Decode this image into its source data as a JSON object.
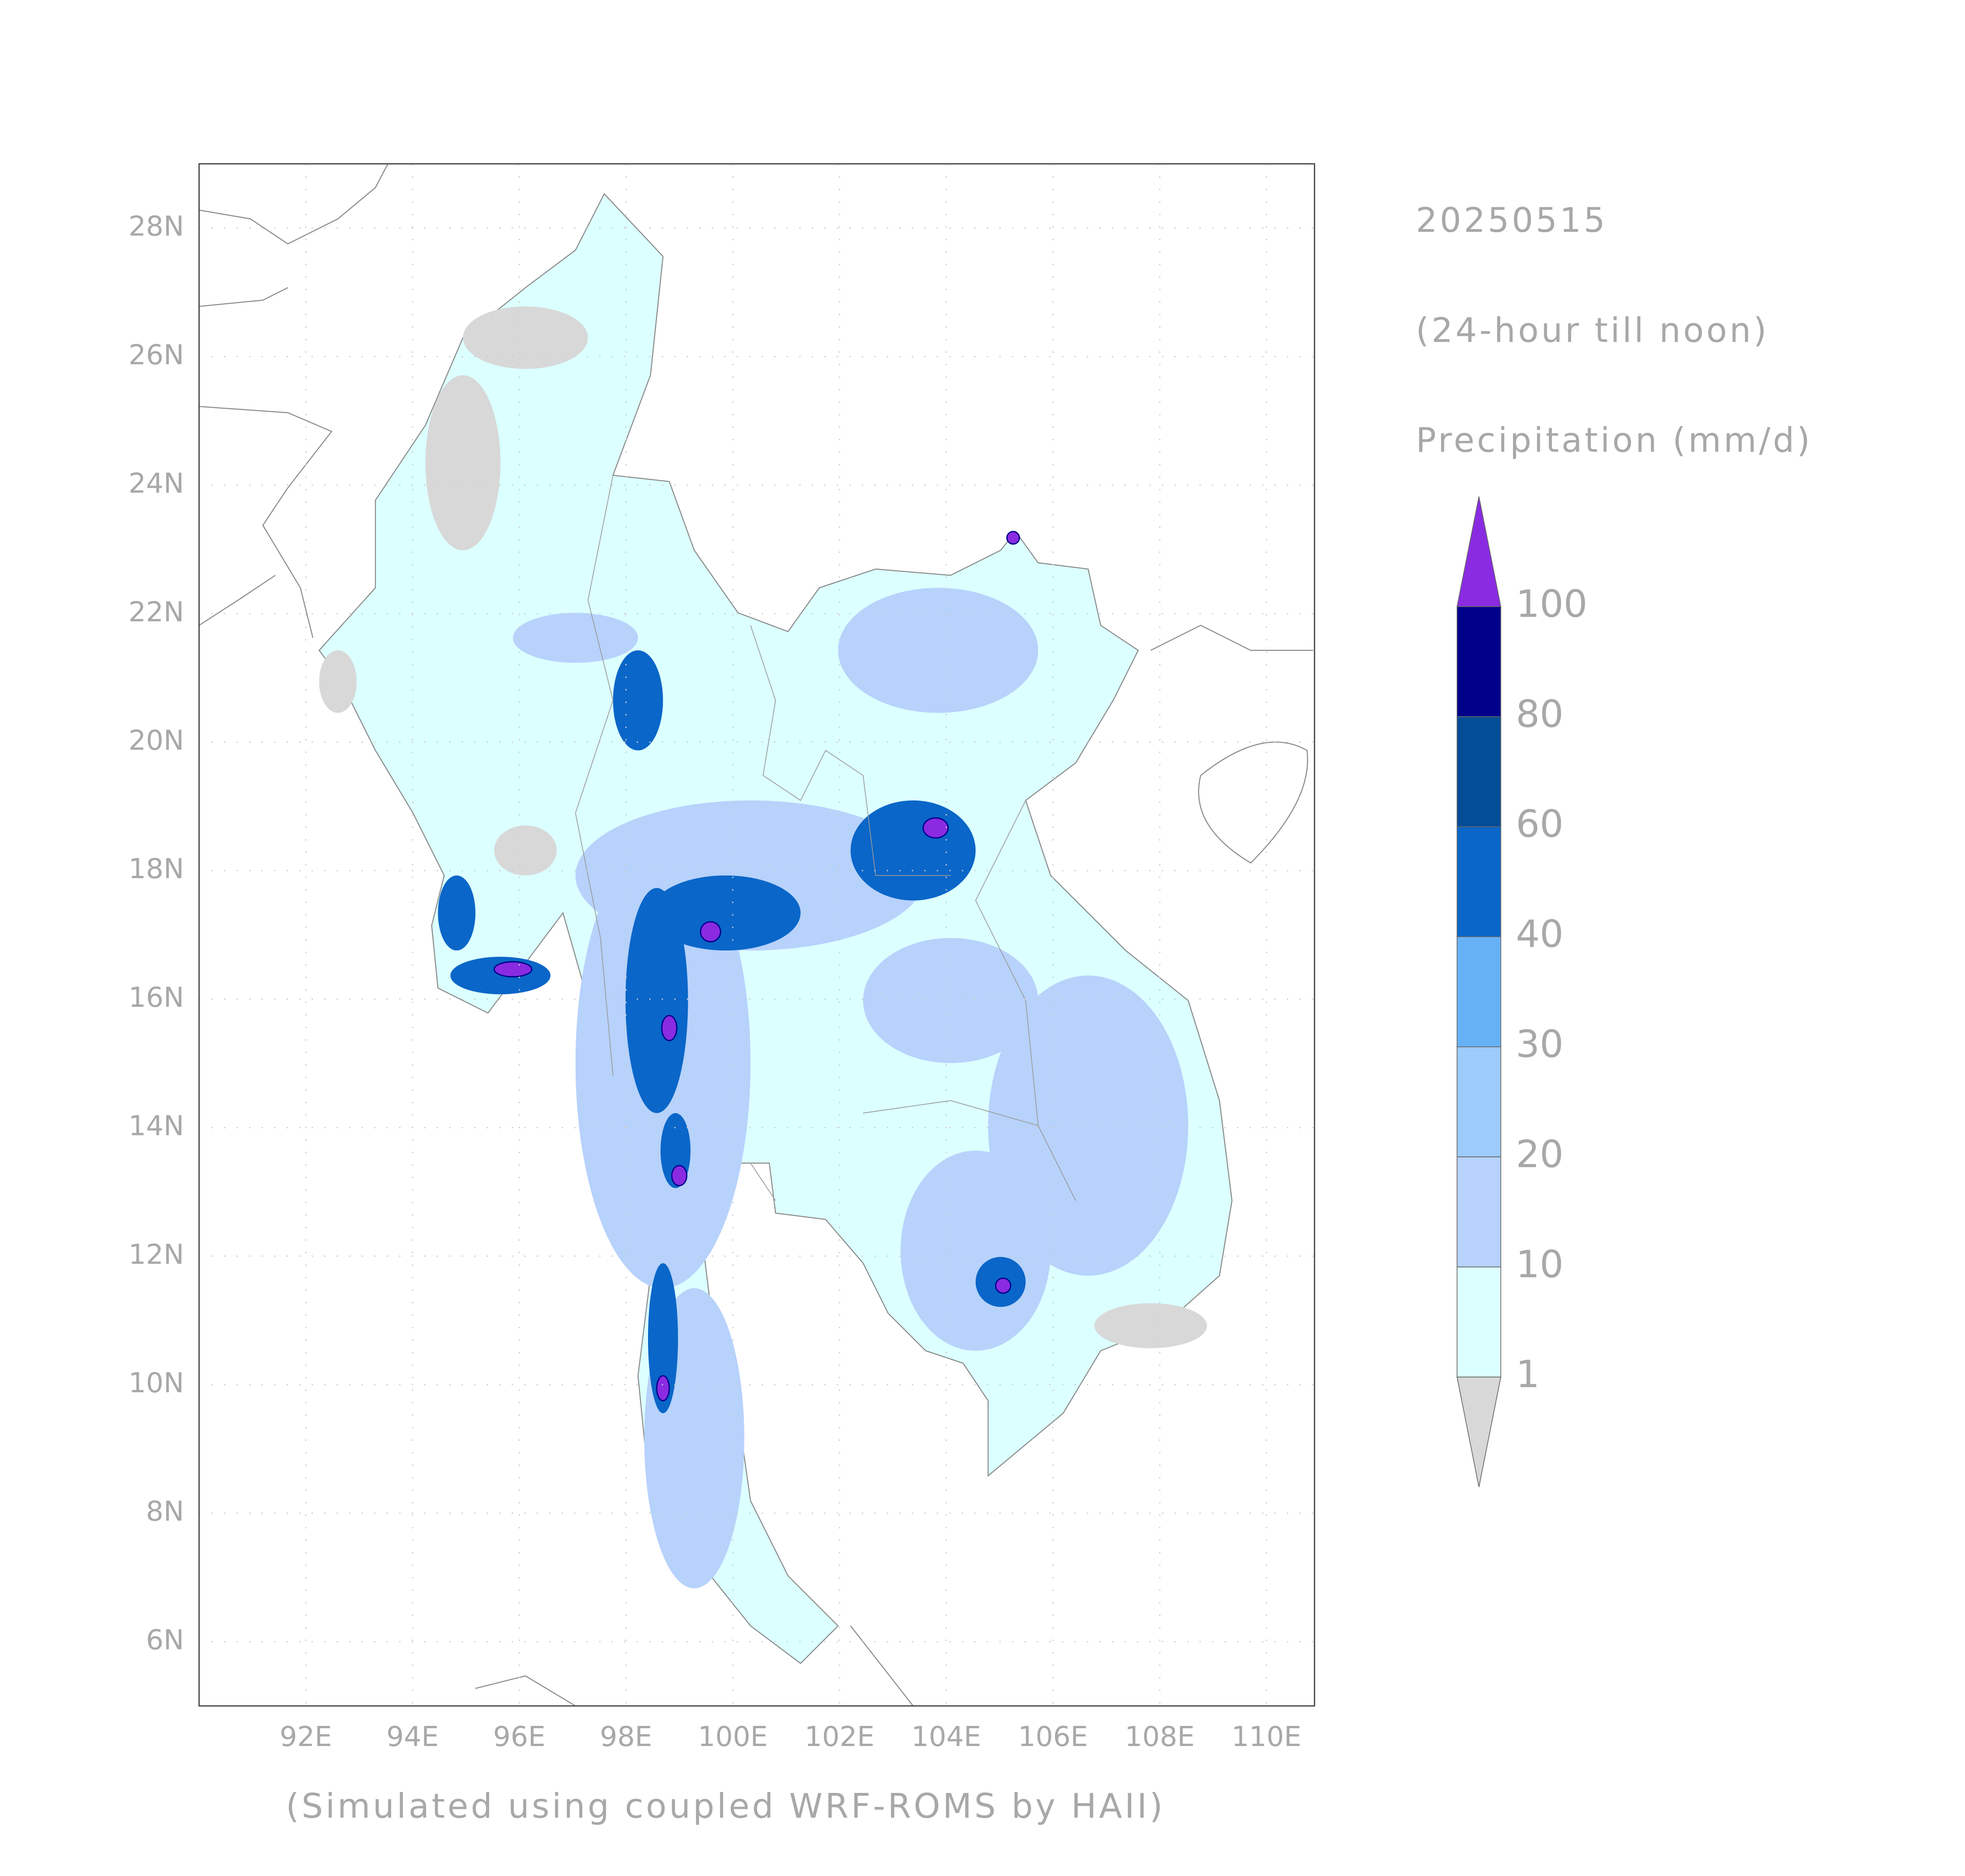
{
  "date": "20250515",
  "period": "(24-hour till noon)",
  "variable": "Precipitation (mm/d)",
  "footer": "(Simulated using coupled WRF-ROMS by HAII)",
  "xlim": [
    90,
    110.9
  ],
  "ylim": [
    5,
    29
  ],
  "xticks": [
    {
      "value": 92,
      "label": "92E"
    },
    {
      "value": 94,
      "label": "94E"
    },
    {
      "value": 96,
      "label": "96E"
    },
    {
      "value": 98,
      "label": "98E"
    },
    {
      "value": 100,
      "label": "100E"
    },
    {
      "value": 102,
      "label": "102E"
    },
    {
      "value": 104,
      "label": "104E"
    },
    {
      "value": 106,
      "label": "106E"
    },
    {
      "value": 108,
      "label": "108E"
    },
    {
      "value": 110,
      "label": "110E"
    }
  ],
  "yticks": [
    {
      "value": 6,
      "label": "6N"
    },
    {
      "value": 8,
      "label": "8N"
    },
    {
      "value": 10,
      "label": "10N"
    },
    {
      "value": 12,
      "label": "12N"
    },
    {
      "value": 14,
      "label": "14N"
    },
    {
      "value": 16,
      "label": "16N"
    },
    {
      "value": 18,
      "label": "18N"
    },
    {
      "value": 20,
      "label": "20N"
    },
    {
      "value": 22,
      "label": "22N"
    },
    {
      "value": 24,
      "label": "24N"
    },
    {
      "value": 26,
      "label": "26N"
    },
    {
      "value": 28,
      "label": "28N"
    }
  ],
  "grid": true,
  "colorbar": {
    "levels": [
      1,
      10,
      20,
      30,
      40,
      60,
      80,
      100
    ],
    "colors": [
      "#d8d8d8",
      "#dcffff",
      "#b7d2fb",
      "#9dcbfb",
      "#66b1f6",
      "#0a66c8",
      "#034c96",
      "#00008a",
      "#8a2be2"
    ]
  }
}
